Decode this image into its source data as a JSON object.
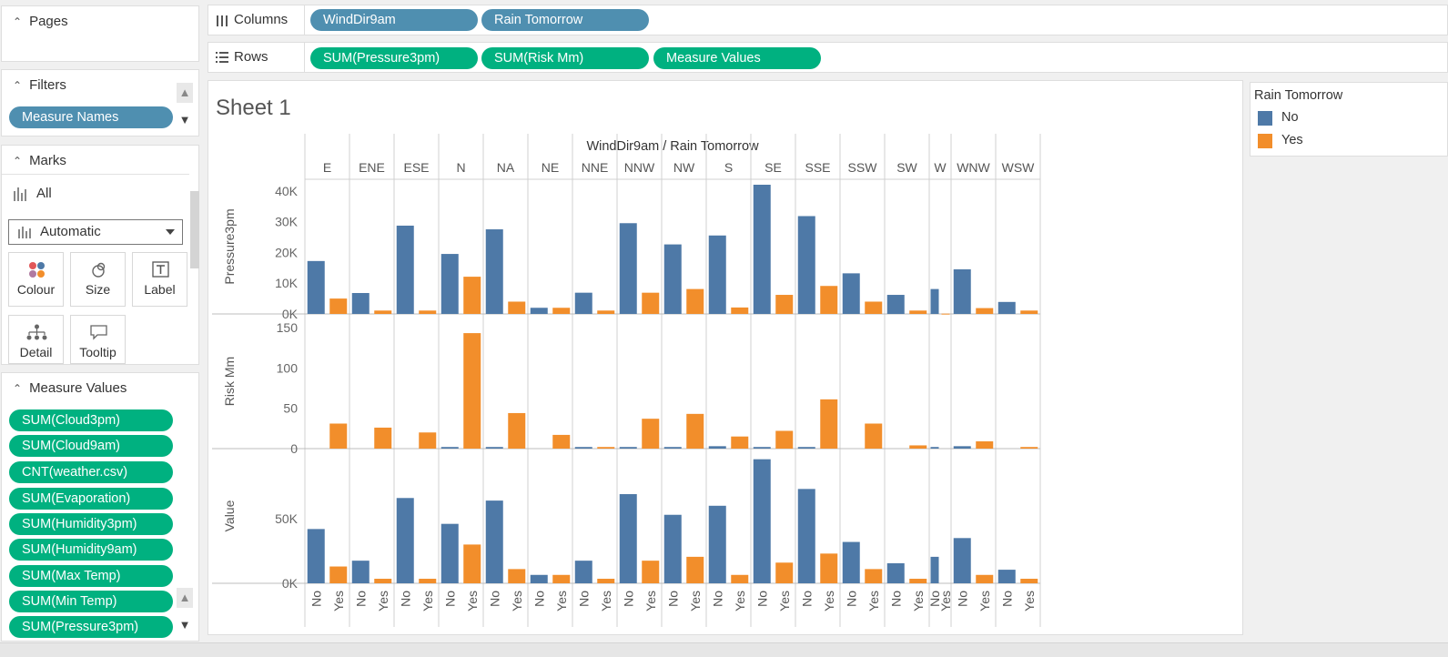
{
  "pages": {
    "title": "Pages"
  },
  "filters": {
    "title": "Filters",
    "pills": [
      "Measure Names"
    ]
  },
  "marks": {
    "title": "Marks",
    "all_label": "All",
    "mark_type": "Automatic",
    "buttons": {
      "colour": "Colour",
      "size": "Size",
      "label": "Label",
      "detail": "Detail",
      "tooltip": "Tooltip"
    }
  },
  "measure_values": {
    "title": "Measure Values",
    "pills": [
      "SUM(Cloud3pm)",
      "SUM(Cloud9am)",
      "CNT(weather.csv)",
      "SUM(Evaporation)",
      "SUM(Humidity3pm)",
      "SUM(Humidity9am)",
      "SUM(Max Temp)",
      "SUM(Min Temp)",
      "SUM(Pressure3pm)"
    ]
  },
  "columns_shelf": {
    "label": "Columns",
    "pills": [
      "WindDir9am",
      "Rain Tomorrow"
    ]
  },
  "rows_shelf": {
    "label": "Rows",
    "pills": [
      "SUM(Pressure3pm)",
      "SUM(Risk Mm)",
      "Measure Values"
    ]
  },
  "sheet": {
    "title": "Sheet 1"
  },
  "legend": {
    "title": "Rain Tomorrow",
    "items": [
      {
        "label": "No",
        "color": "#4e79a7"
      },
      {
        "label": "Yes",
        "color": "#f28e2b"
      }
    ]
  },
  "chart_data": {
    "type": "bar",
    "header": "WindDir9am / Rain Tomorrow",
    "categories": [
      "E",
      "ENE",
      "ESE",
      "N",
      "NA",
      "NE",
      "NNE",
      "NNW",
      "NW",
      "S",
      "SE",
      "SSE",
      "SSW",
      "SW",
      "W",
      "WNW",
      "WSW"
    ],
    "subcategories": [
      "No",
      "Yes"
    ],
    "colors": {
      "No": "#4e79a7",
      "Yes": "#f28e2b"
    },
    "panes": [
      {
        "ylabel": "Pressure3pm",
        "ylim": [
          0,
          42000
        ],
        "ticks": [
          {
            "value": 0,
            "label": "0K"
          },
          {
            "value": 10000,
            "label": "10K"
          },
          {
            "value": 20000,
            "label": "20K"
          },
          {
            "value": 30000,
            "label": "30K"
          },
          {
            "value": 40000,
            "label": "40K"
          }
        ],
        "series": [
          {
            "name": "No",
            "values": [
              17200,
              6800,
              28700,
              19500,
              27500,
              2000,
              6900,
              29500,
              22600,
              25500,
              42000,
              31800,
              13200,
              6200,
              8100,
              14500,
              3900
            ]
          },
          {
            "name": "Yes",
            "values": [
              5000,
              1100,
              1100,
              12100,
              4000,
              2000,
              1100,
              6900,
              8100,
              2100,
              6200,
              9100,
              4000,
              1100,
              100,
              1900,
              1100
            ]
          }
        ]
      },
      {
        "ylabel": "Risk Mm",
        "ylim": [
          0,
          160
        ],
        "ticks": [
          {
            "value": 0,
            "label": "0"
          },
          {
            "value": 50,
            "label": "50"
          },
          {
            "value": 100,
            "label": "100"
          },
          {
            "value": 150,
            "label": "150"
          }
        ],
        "series": [
          {
            "name": "No",
            "values": [
              0,
              0,
              0,
              2,
              2,
              0,
              2,
              2,
              2,
              3,
              2,
              2,
              0,
              0,
              2,
              3,
              0
            ]
          },
          {
            "name": "Yes",
            "values": [
              31,
              26,
              20,
              143,
              44,
              17,
              2,
              37,
              43,
              15,
              22,
              61,
              31,
              4,
              0,
              9,
              2
            ]
          }
        ]
      },
      {
        "ylabel": "Value",
        "ylim": [
          0,
          100000
        ],
        "ticks": [
          {
            "value": 0,
            "label": "0K"
          },
          {
            "value": 50000,
            "label": "50K"
          }
        ],
        "series": [
          {
            "name": "No",
            "values": [
              42000,
              17500,
              66000,
              46000,
              64000,
              6500,
              17500,
              69000,
              53000,
              60000,
              96000,
              73000,
              32000,
              15500,
              20500,
              35000,
              10500
            ]
          },
          {
            "name": "Yes",
            "values": [
              13000,
              3500,
              3500,
              30000,
              11000,
              6500,
              3500,
              17500,
              20500,
              6500,
              16000,
              23000,
              11000,
              3500,
              0,
              6500,
              3500
            ]
          }
        ]
      }
    ]
  }
}
